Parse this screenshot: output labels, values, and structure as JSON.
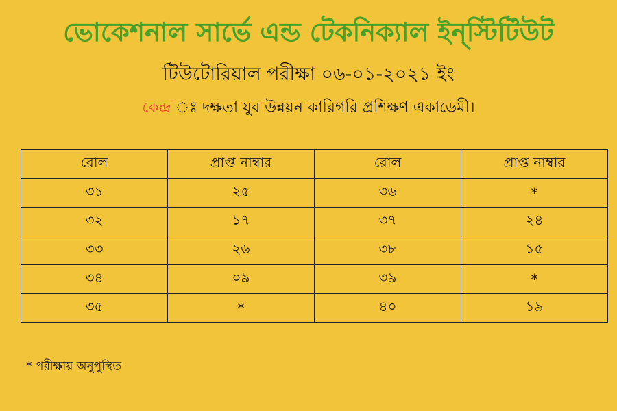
{
  "header": {
    "title": "ভোকেশনাল সার্ভে এন্ড টেকনিক্যাল ইন্‌স্টিটিউট",
    "subtitle": "টিউটোরিয়াল পরীক্ষা ০৬-০১-২০২১ ইং",
    "center_label": "কেন্দ্র",
    "center_text": "ঃ দক্ষতা যুব উন্নয়ন কারিগরি প্রশিক্ষণ একাডেমী।"
  },
  "colors": {
    "background": "#f2c43a",
    "title": "#4aa12a",
    "center_label": "#e8452a"
  },
  "table": {
    "headers": [
      "রোল",
      "প্রাপ্ত নাম্বার",
      "রোল",
      "প্রাপ্ত নাম্বার"
    ],
    "rows": [
      [
        "৩১",
        "২৫",
        "৩৬",
        "*"
      ],
      [
        "৩২",
        "১৭",
        "৩৭",
        "২৪"
      ],
      [
        "৩৩",
        "২৬",
        "৩৮",
        "১৫"
      ],
      [
        "৩৪",
        "০৯",
        "৩৯",
        "*"
      ],
      [
        "৩৫",
        "*",
        "৪০",
        "১৯"
      ]
    ]
  },
  "footnote": "*  পরীক্ষায় অনুপুস্থিত"
}
